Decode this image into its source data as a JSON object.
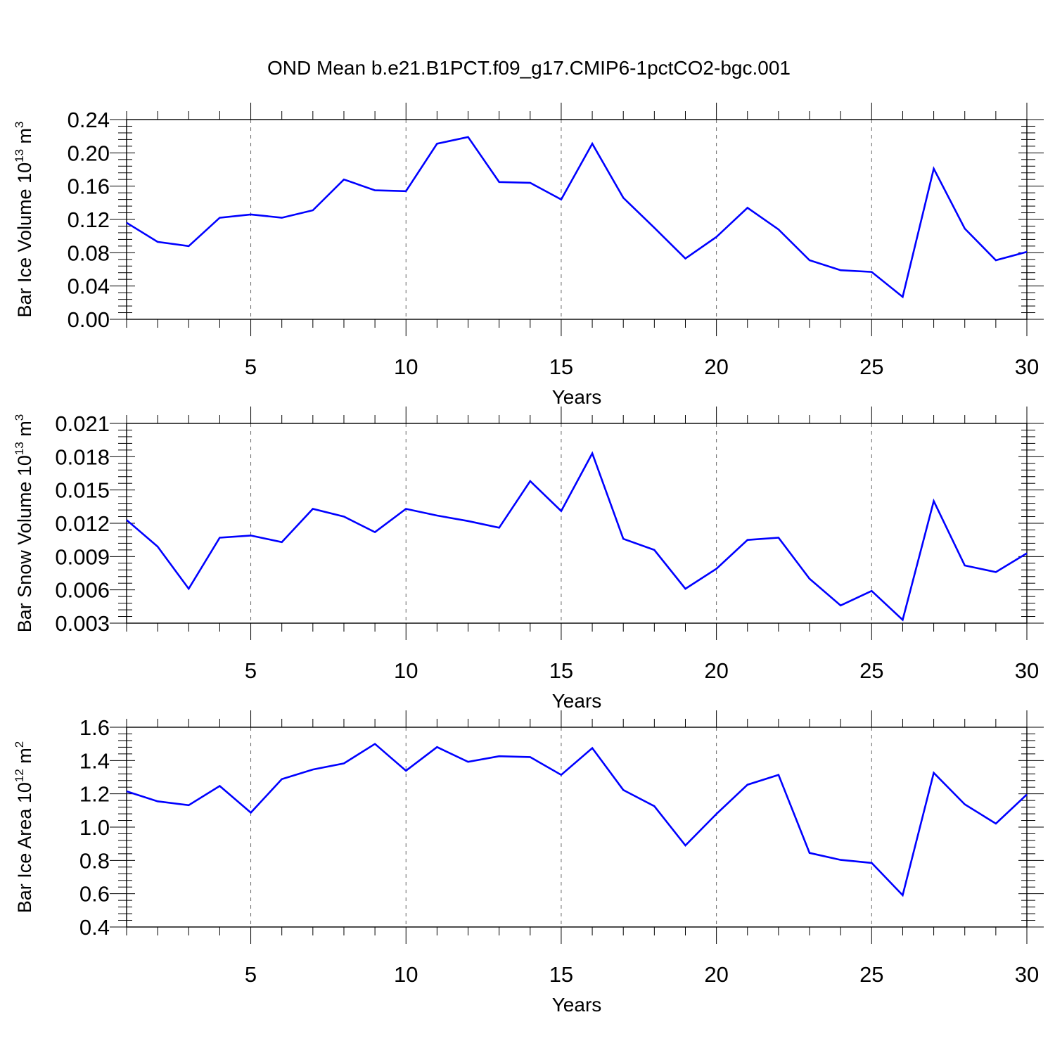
{
  "title": "OND Mean b.e21.B1PCT.f09_g17.CMIP6-1pctCO2-bgc.001",
  "colors": {
    "line": "#0000ff",
    "axis": "#000000",
    "grid": "#666666"
  },
  "chart_data": [
    {
      "type": "line",
      "ylabel": {
        "main": "Bar Ice Volume 10",
        "sup": "13",
        "unit": " m",
        "unit_sup": "3"
      },
      "xlabel": "Years",
      "xlim": [
        1,
        30
      ],
      "ylim": [
        0,
        0.24
      ],
      "x_ticks": [
        5,
        10,
        15,
        20,
        25,
        30
      ],
      "y_ticks": [
        {
          "value": 0.0,
          "label": "0.00"
        },
        {
          "value": 0.04,
          "label": "0.04"
        },
        {
          "value": 0.08,
          "label": "0.08"
        },
        {
          "value": 0.12,
          "label": "0.12"
        },
        {
          "value": 0.16,
          "label": "0.16"
        },
        {
          "value": 0.2,
          "label": "0.20"
        },
        {
          "value": 0.24,
          "label": "0.24"
        }
      ],
      "grid": "vertical dashed at major x ticks",
      "x": [
        1,
        2,
        3,
        4,
        5,
        6,
        7,
        8,
        9,
        10,
        11,
        12,
        13,
        14,
        15,
        16,
        17,
        18,
        19,
        20,
        21,
        22,
        23,
        24,
        25,
        26,
        27,
        28,
        29,
        30
      ],
      "y": [
        0.116,
        0.093,
        0.088,
        0.122,
        0.126,
        0.122,
        0.131,
        0.168,
        0.155,
        0.154,
        0.211,
        0.219,
        0.165,
        0.164,
        0.144,
        0.211,
        0.146,
        0.11,
        0.073,
        0.099,
        0.134,
        0.108,
        0.071,
        0.059,
        0.057,
        0.027,
        0.181,
        0.109,
        0.071,
        0.081
      ]
    },
    {
      "type": "line",
      "ylabel": {
        "main": "Bar Snow Volume 10",
        "sup": "13",
        "unit": " m",
        "unit_sup": "3"
      },
      "xlabel": "Years",
      "xlim": [
        1,
        30
      ],
      "ylim": [
        0.003,
        0.021
      ],
      "x_ticks": [
        5,
        10,
        15,
        20,
        25,
        30
      ],
      "y_ticks": [
        {
          "value": 0.003,
          "label": "0.003"
        },
        {
          "value": 0.006,
          "label": "0.006"
        },
        {
          "value": 0.009,
          "label": "0.009"
        },
        {
          "value": 0.012,
          "label": "0.012"
        },
        {
          "value": 0.015,
          "label": "0.015"
        },
        {
          "value": 0.018,
          "label": "0.018"
        },
        {
          "value": 0.021,
          "label": "0.021"
        }
      ],
      "grid": "vertical dashed at major x ticks",
      "x": [
        1,
        2,
        3,
        4,
        5,
        6,
        7,
        8,
        9,
        10,
        11,
        12,
        13,
        14,
        15,
        16,
        17,
        18,
        19,
        20,
        21,
        22,
        23,
        24,
        25,
        26,
        27,
        28,
        29,
        30
      ],
      "y": [
        0.0123,
        0.0099,
        0.0061,
        0.0107,
        0.0109,
        0.0103,
        0.0133,
        0.0126,
        0.0112,
        0.0133,
        0.0127,
        0.0122,
        0.0116,
        0.0158,
        0.0131,
        0.0183,
        0.0106,
        0.0096,
        0.0061,
        0.0079,
        0.0105,
        0.0107,
        0.007,
        0.0046,
        0.0059,
        0.0033,
        0.014,
        0.0082,
        0.0076,
        0.0093
      ]
    },
    {
      "type": "line",
      "ylabel": {
        "main": "Bar Ice Area 10",
        "sup": "12",
        "unit": " m",
        "unit_sup": "2"
      },
      "xlabel": "Years",
      "xlim": [
        1,
        30
      ],
      "ylim": [
        0.4,
        1.6
      ],
      "x_ticks": [
        5,
        10,
        15,
        20,
        25,
        30
      ],
      "y_ticks": [
        {
          "value": 0.4,
          "label": "0.4"
        },
        {
          "value": 0.6,
          "label": "0.6"
        },
        {
          "value": 0.8,
          "label": "0.8"
        },
        {
          "value": 1.0,
          "label": "1.0"
        },
        {
          "value": 1.2,
          "label": "1.2"
        },
        {
          "value": 1.4,
          "label": "1.4"
        },
        {
          "value": 1.6,
          "label": "1.6"
        }
      ],
      "grid": "vertical dashed at major x ticks",
      "x": [
        1,
        2,
        3,
        4,
        5,
        6,
        7,
        8,
        9,
        10,
        11,
        12,
        13,
        14,
        15,
        16,
        17,
        18,
        19,
        20,
        21,
        22,
        23,
        24,
        25,
        26,
        27,
        28,
        29,
        30
      ],
      "y": [
        1.215,
        1.155,
        1.132,
        1.247,
        1.087,
        1.288,
        1.346,
        1.383,
        1.5,
        1.339,
        1.481,
        1.392,
        1.426,
        1.421,
        1.314,
        1.475,
        1.223,
        1.126,
        0.89,
        1.079,
        1.255,
        1.314,
        0.845,
        0.803,
        0.785,
        0.591,
        1.326,
        1.137,
        1.021,
        1.196
      ]
    }
  ]
}
